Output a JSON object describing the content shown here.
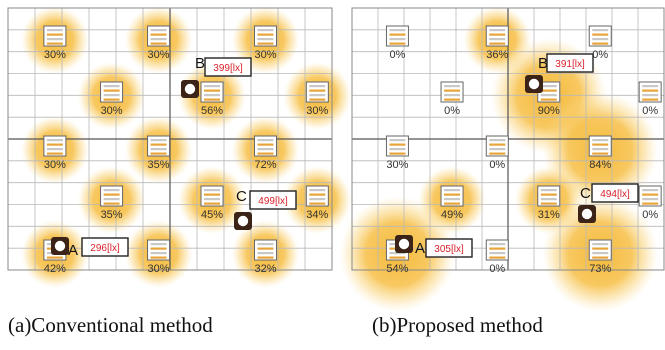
{
  "panels": [
    {
      "caption": "(a)Conventional method",
      "lights": [
        {
          "col": 1,
          "row": 0,
          "level": "30%",
          "glow": 1
        },
        {
          "col": 3,
          "row": 0,
          "level": "30%",
          "glow": 1
        },
        {
          "col": 6,
          "row": 0,
          "level": "30%",
          "glow": 1
        },
        {
          "col": 2,
          "row": 1,
          "level": "30%",
          "glow": 1
        },
        {
          "col": 5,
          "row": 1,
          "level": "56%",
          "glow": 1
        },
        {
          "col": 7,
          "row": 1,
          "level": "30%",
          "glow": 1
        },
        {
          "col": 1,
          "row": 2,
          "level": "30%",
          "glow": 1
        },
        {
          "col": 3,
          "row": 2,
          "level": "35%",
          "glow": 1
        },
        {
          "col": 6,
          "row": 2,
          "level": "72%",
          "glow": 1
        },
        {
          "col": 2,
          "row": 3,
          "level": "35%",
          "glow": 1
        },
        {
          "col": 5,
          "row": 3,
          "level": "45%",
          "glow": 1
        },
        {
          "col": 7,
          "row": 3,
          "level": "34%",
          "glow": 1
        },
        {
          "col": 1,
          "row": 4,
          "level": "42%",
          "glow": 1
        },
        {
          "col": 3,
          "row": 4,
          "level": "30%",
          "glow": 1
        },
        {
          "col": 6,
          "row": 4,
          "level": "32%",
          "glow": 1
        }
      ],
      "points": [
        {
          "id": "B",
          "value": "399[lx]"
        },
        {
          "id": "C",
          "value": "499[lx]"
        },
        {
          "id": "A",
          "value": "296[lx]"
        }
      ]
    },
    {
      "caption": "(b)Proposed method",
      "lights": [
        {
          "col": 1,
          "row": 0,
          "level": "0%",
          "glow": 0
        },
        {
          "col": 3,
          "row": 0,
          "level": "36%",
          "glow": 1
        },
        {
          "col": 6,
          "row": 0,
          "level": "0%",
          "glow": 0
        },
        {
          "col": 2,
          "row": 1,
          "level": "0%",
          "glow": 0
        },
        {
          "col": 5,
          "row": 1,
          "level": "90%",
          "glow": 2
        },
        {
          "col": 7,
          "row": 1,
          "level": "0%",
          "glow": 0
        },
        {
          "col": 1,
          "row": 2,
          "level": "30%",
          "glow": 0
        },
        {
          "col": 3,
          "row": 2,
          "level": "0%",
          "glow": 0
        },
        {
          "col": 6,
          "row": 2,
          "level": "84%",
          "glow": 2
        },
        {
          "col": 2,
          "row": 3,
          "level": "49%",
          "glow": 1
        },
        {
          "col": 5,
          "row": 3,
          "level": "31%",
          "glow": 1
        },
        {
          "col": 7,
          "row": 3,
          "level": "0%",
          "glow": 0
        },
        {
          "col": 1,
          "row": 4,
          "level": "54%",
          "glow": 2
        },
        {
          "col": 3,
          "row": 4,
          "level": "0%",
          "glow": 0
        },
        {
          "col": 6,
          "row": 4,
          "level": "73%",
          "glow": 2
        }
      ],
      "points": [
        {
          "id": "B",
          "value": "391[lx]"
        },
        {
          "id": "C",
          "value": "494[lx]"
        },
        {
          "id": "A",
          "value": "305[lx]"
        }
      ]
    }
  ]
}
